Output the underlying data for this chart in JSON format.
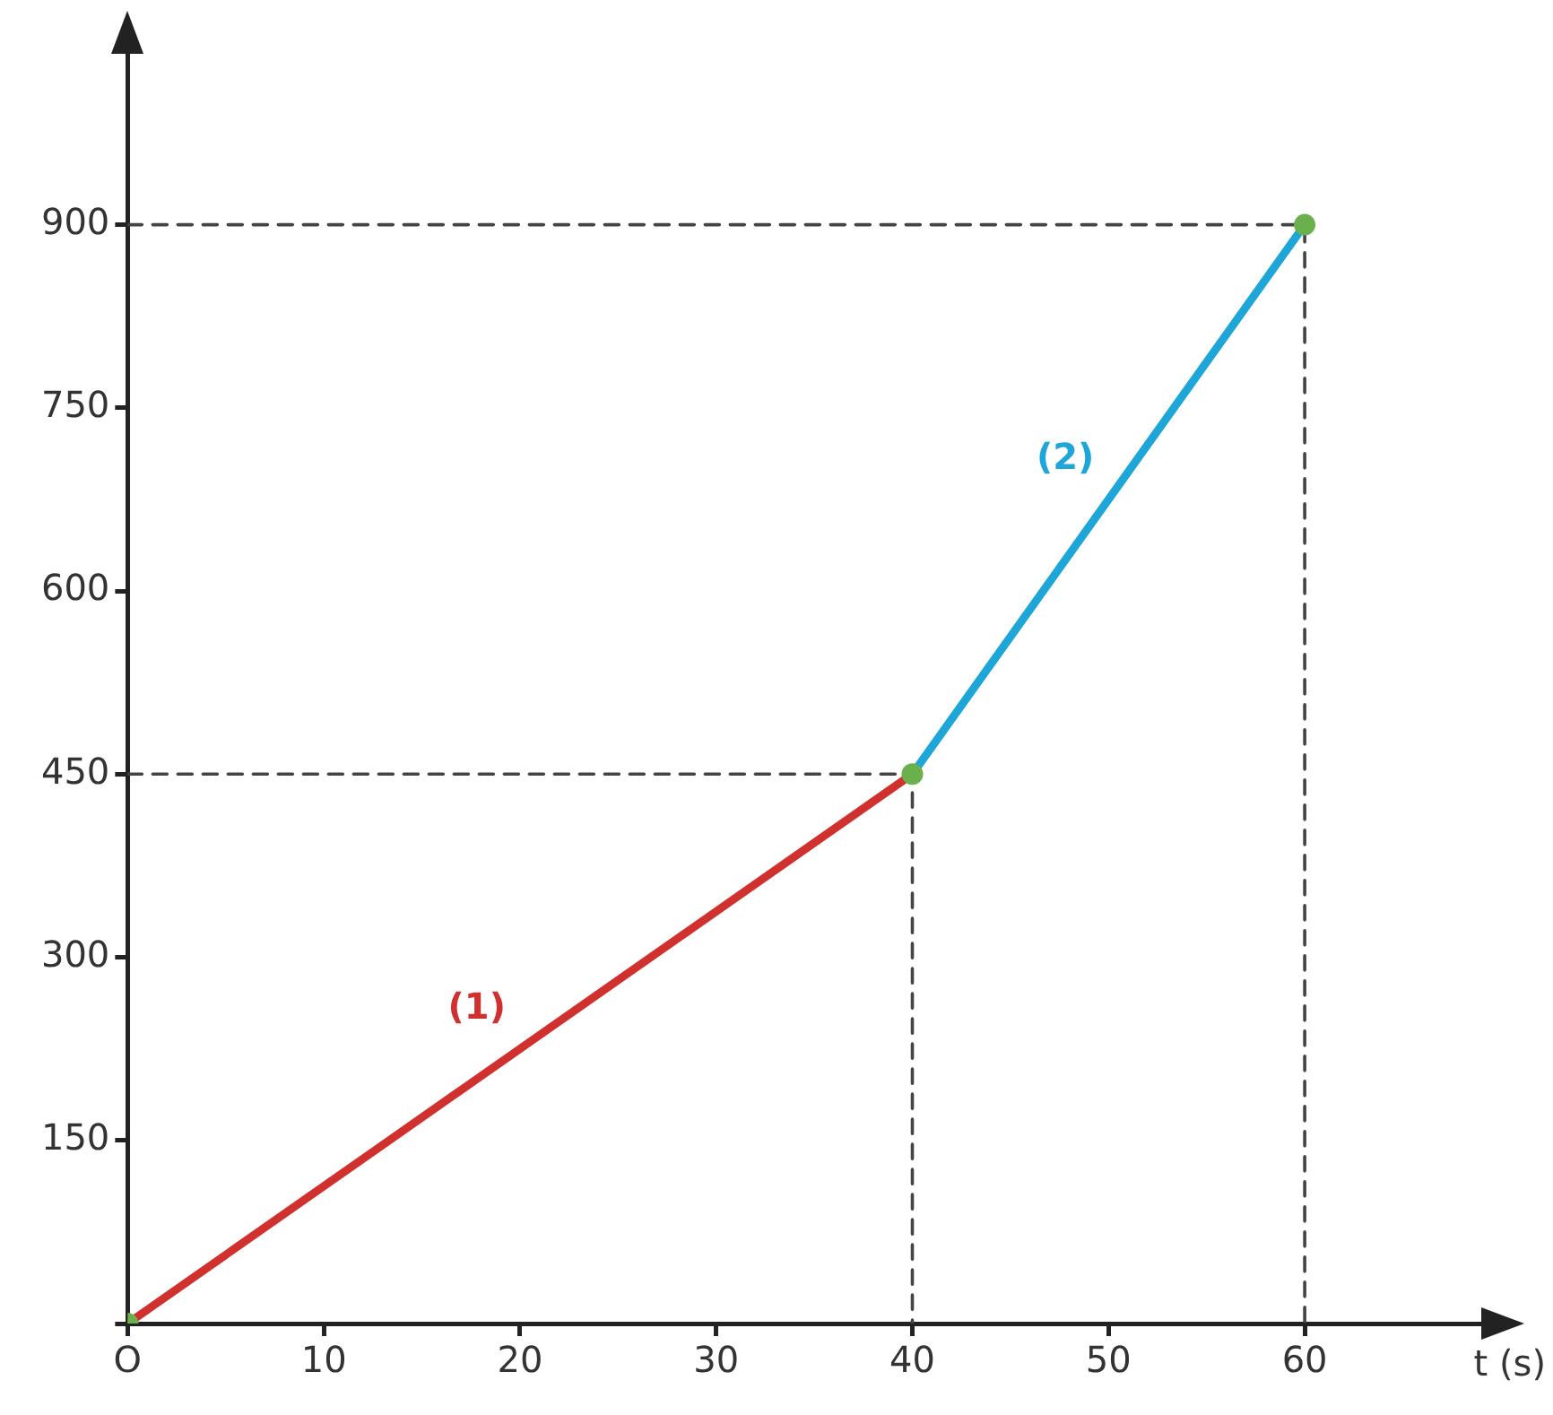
{
  "chart_data": {
    "type": "line",
    "xlabel": "t (s)",
    "xlim": [
      0,
      69
    ],
    "ylim": [
      0,
      1040
    ],
    "xticks": [
      {
        "value": 0,
        "label": "O"
      },
      10,
      20,
      30,
      40,
      50,
      60
    ],
    "yticks": [
      {
        "value": 0,
        "label": null
      },
      150,
      300,
      450,
      600,
      750,
      900
    ],
    "grid": false,
    "legend": false,
    "marker": "none",
    "series": [
      {
        "name": "(1)",
        "color": "#d1312e",
        "x": [
          0,
          40
        ],
        "values": [
          0,
          450
        ]
      },
      {
        "name": "(2)",
        "color": "#1ea6d9",
        "x": [
          40,
          60
        ],
        "values": [
          450,
          900
        ]
      },
      {
        "color": "#444444",
        "line_style": "dashed",
        "x": [
          0,
          40,
          40
        ],
        "values": [
          450,
          450,
          0
        ]
      },
      {
        "color": "#444444",
        "line_style": "dashed",
        "x": [
          0,
          60,
          60
        ],
        "values": [
          900,
          900,
          0
        ]
      },
      {
        "type": "scatter",
        "marker": "circle",
        "color": "#6ab04c",
        "x": [
          0,
          40,
          60
        ],
        "values": [
          0,
          450,
          900
        ]
      }
    ]
  }
}
